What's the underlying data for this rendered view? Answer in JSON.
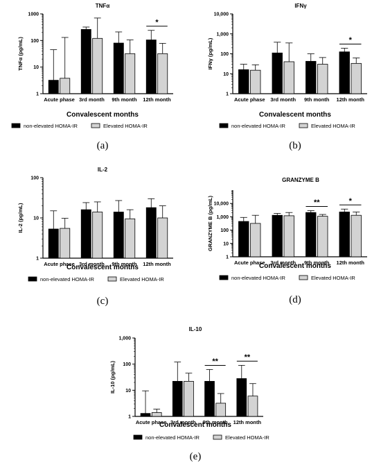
{
  "chart_data": [
    {
      "type": "bar",
      "panel_label": "(a)",
      "title": "TNFα",
      "ylabel": "TNFα (pg/mL)",
      "xlabel": "Convalescent months",
      "yscale": "log",
      "ylim": [
        1,
        1000
      ],
      "yticks": [
        "1",
        "10",
        "100",
        "1000"
      ],
      "categories": [
        "Acute phase",
        "3rd month",
        "9th month",
        "12th month"
      ],
      "series": [
        {
          "name": "non-elevated HOMA-IR",
          "color": "#000000",
          "values": [
            3.2,
            260,
            80,
            105
          ],
          "error_upper": [
            45,
            320,
            210,
            240
          ]
        },
        {
          "name": "Elevated HOMA-IR",
          "color": "#d3d3d3",
          "values": [
            3.8,
            120,
            32,
            32
          ],
          "error_upper": [
            130,
            700,
            105,
            78
          ]
        }
      ],
      "significance": [
        {
          "category": "12th month",
          "label": "*"
        }
      ]
    },
    {
      "type": "bar",
      "panel_label": "(b)",
      "title": "IFNγ",
      "ylabel": "IFNγ (pg/mL)",
      "xlabel": "Convalescent months",
      "yscale": "log",
      "ylim": [
        1,
        10000
      ],
      "yticks": [
        "1",
        "10",
        "100",
        "1,000",
        "10,000"
      ],
      "categories": [
        "Acute phase",
        "3rd month",
        "9th month",
        "12th month"
      ],
      "series": [
        {
          "name": "non-elevated HOMA-IR",
          "color": "#000000",
          "values": [
            16,
            110,
            42,
            125
          ],
          "error_upper": [
            30,
            380,
            100,
            190
          ]
        },
        {
          "name": "Elevated HOMA-IR",
          "color": "#d3d3d3",
          "values": [
            15,
            40,
            30,
            33
          ],
          "error_upper": [
            28,
            350,
            65,
            62
          ]
        }
      ],
      "significance": [
        {
          "category": "12th month",
          "label": "*"
        }
      ]
    },
    {
      "type": "bar",
      "panel_label": "(c)",
      "title": "IL-2",
      "ylabel": "IL-2 (pg/mL)",
      "xlabel": "Convalescent months",
      "yscale": "log",
      "ylim": [
        1,
        100
      ],
      "yticks": [
        "1",
        "10",
        "100"
      ],
      "categories": [
        "Acute phase",
        "3rd month",
        "9th month",
        "12th month"
      ],
      "series": [
        {
          "name": "non-elevated HOMA-IR",
          "color": "#000000",
          "values": [
            5.3,
            16,
            14,
            18
          ],
          "error_upper": [
            15,
            24,
            27,
            30
          ]
        },
        {
          "name": "Elevated HOMA-IR",
          "color": "#d3d3d3",
          "values": [
            5.5,
            14,
            9.5,
            10
          ],
          "error_upper": [
            9.8,
            25,
            16,
            20
          ]
        }
      ],
      "significance": []
    },
    {
      "type": "bar",
      "panel_label": "(d)",
      "title": "GRANZYME B",
      "ylabel": "GRANZYME B (pg/mL)",
      "xlabel": "Convalescent months",
      "yscale": "log",
      "ylim": [
        1,
        100000
      ],
      "yticks": [
        "1",
        "10",
        "100",
        "1,000",
        "10,000"
      ],
      "categories": [
        "Acute phase",
        "3rd month",
        "9th month",
        "12th month"
      ],
      "series": [
        {
          "name": "non-elevated HOMA-IR",
          "color": "#000000",
          "values": [
            450,
            1300,
            2100,
            2300
          ],
          "error_upper": [
            900,
            1800,
            2900,
            3800
          ]
        },
        {
          "name": "Elevated HOMA-IR",
          "color": "#d3d3d3",
          "values": [
            320,
            1200,
            1100,
            1300
          ],
          "error_upper": [
            1300,
            2100,
            1500,
            2300
          ]
        }
      ],
      "significance": [
        {
          "category": "9th month",
          "label": "**"
        },
        {
          "category": "12th month",
          "label": "*"
        }
      ]
    },
    {
      "type": "bar",
      "panel_label": "(e)",
      "title": "IL-10",
      "ylabel": "IL-10 (pg/mL)",
      "xlabel": "Convalescent months",
      "yscale": "log",
      "ylim": [
        1,
        1000
      ],
      "yticks": [
        "1",
        "10",
        "100",
        "1,000"
      ],
      "categories": [
        "Acute phase",
        "3rd month",
        "9th month",
        "12th month"
      ],
      "series": [
        {
          "name": "non-elevated HOMA-IR",
          "color": "#000000",
          "values": [
            1.3,
            22,
            22,
            28
          ],
          "error_upper": [
            9.5,
            120,
            62,
            90
          ]
        },
        {
          "name": "Elevated HOMA-IR",
          "color": "#d3d3d3",
          "values": [
            1.4,
            22,
            3.2,
            6
          ],
          "error_upper": [
            1.9,
            45,
            7.5,
            18
          ]
        }
      ],
      "significance": [
        {
          "category": "9th month",
          "label": "**"
        },
        {
          "category": "12th month",
          "label": "**"
        }
      ]
    }
  ]
}
